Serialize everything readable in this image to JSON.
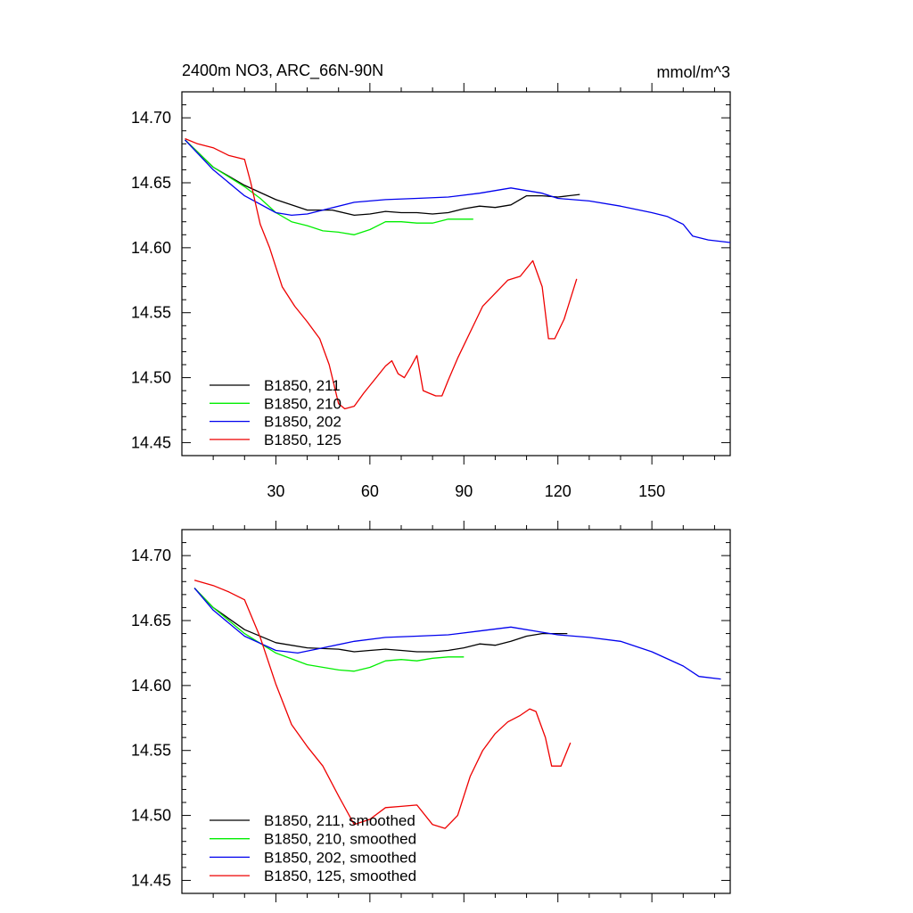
{
  "header": {
    "title": "2400m NO3, ARC_66N-90N",
    "units": "mmol/m^3"
  },
  "chart_data": [
    {
      "type": "line",
      "title": "2400m NO3, ARC_66N-90N",
      "units": "mmol/m^3",
      "xlim": [
        0,
        175
      ],
      "ylim": [
        14.44,
        14.72
      ],
      "xticks": [
        30,
        60,
        90,
        120,
        150
      ],
      "xtick_labels": [
        "30",
        "60",
        "90",
        "120",
        "150"
      ],
      "yticks": [
        14.45,
        14.5,
        14.55,
        14.6,
        14.65,
        14.7
      ],
      "ytick_labels": [
        "14.45",
        "14.50",
        "14.55",
        "14.60",
        "14.65",
        "14.70"
      ],
      "grid": false,
      "legend_position": "bottom-left",
      "series": [
        {
          "name": "B1850, 211",
          "color": "#000000",
          "x": [
            1,
            10,
            20,
            30,
            40,
            48,
            55,
            60,
            65,
            70,
            75,
            80,
            85,
            90,
            95,
            100,
            105,
            110,
            115,
            120,
            127
          ],
          "y": [
            14.683,
            14.662,
            14.648,
            14.637,
            14.629,
            14.629,
            14.625,
            14.626,
            14.628,
            14.627,
            14.627,
            14.626,
            14.627,
            14.63,
            14.632,
            14.631,
            14.633,
            14.64,
            14.64,
            14.639,
            14.641
          ]
        },
        {
          "name": "B1850, 210",
          "color": "#00ee00",
          "x": [
            1,
            10,
            20,
            25,
            30,
            35,
            40,
            45,
            50,
            55,
            60,
            65,
            70,
            75,
            80,
            85,
            90,
            93
          ],
          "y": [
            14.683,
            14.662,
            14.647,
            14.638,
            14.627,
            14.62,
            14.617,
            14.613,
            14.612,
            14.61,
            14.614,
            14.62,
            14.62,
            14.619,
            14.619,
            14.622,
            14.622,
            14.622
          ]
        },
        {
          "name": "B1850, 202",
          "color": "#0000ee",
          "x": [
            1,
            10,
            20,
            30,
            35,
            40,
            45,
            55,
            65,
            75,
            85,
            95,
            105,
            115,
            120,
            130,
            140,
            150,
            155,
            160,
            163,
            168,
            175
          ],
          "y": [
            14.683,
            14.66,
            14.64,
            14.627,
            14.625,
            14.626,
            14.629,
            14.635,
            14.637,
            14.638,
            14.639,
            14.642,
            14.646,
            14.642,
            14.638,
            14.636,
            14.632,
            14.627,
            14.624,
            14.618,
            14.609,
            14.606,
            14.604
          ]
        },
        {
          "name": "B1850, 125",
          "color": "#ee0000",
          "x": [
            1,
            5,
            10,
            15,
            20,
            22,
            25,
            28,
            32,
            36,
            40,
            44,
            47,
            50,
            52,
            55,
            58,
            62,
            65,
            67,
            69,
            71,
            73,
            75,
            77,
            79,
            81,
            83,
            85,
            88,
            92,
            96,
            100,
            104,
            108,
            112,
            115,
            117,
            119,
            122,
            126
          ],
          "y": [
            14.684,
            14.68,
            14.677,
            14.671,
            14.668,
            14.65,
            14.618,
            14.6,
            14.57,
            14.555,
            14.543,
            14.53,
            14.51,
            14.48,
            14.476,
            14.478,
            14.488,
            14.5,
            14.509,
            14.513,
            14.503,
            14.5,
            14.508,
            14.517,
            14.49,
            14.488,
            14.486,
            14.486,
            14.498,
            14.515,
            14.535,
            14.555,
            14.565,
            14.575,
            14.578,
            14.59,
            14.57,
            14.53,
            14.53,
            14.545,
            14.576
          ]
        }
      ]
    },
    {
      "type": "line",
      "title": "",
      "xlim": [
        0,
        175
      ],
      "ylim": [
        14.44,
        14.72
      ],
      "xticks": [
        30,
        60,
        90,
        120,
        150
      ],
      "yticks": [
        14.45,
        14.5,
        14.55,
        14.6,
        14.65,
        14.7
      ],
      "ytick_labels": [
        "14.45",
        "14.50",
        "14.55",
        "14.60",
        "14.65",
        "14.70"
      ],
      "grid": false,
      "legend_position": "bottom-left",
      "series": [
        {
          "name": "B1850, 211, smoothed",
          "color": "#000000",
          "x": [
            4,
            10,
            20,
            30,
            40,
            50,
            55,
            60,
            65,
            70,
            75,
            80,
            85,
            90,
            95,
            100,
            105,
            110,
            115,
            123
          ],
          "y": [
            14.675,
            14.66,
            14.643,
            14.633,
            14.629,
            14.628,
            14.626,
            14.627,
            14.628,
            14.627,
            14.626,
            14.626,
            14.627,
            14.629,
            14.632,
            14.631,
            14.634,
            14.638,
            14.64,
            14.64
          ]
        },
        {
          "name": "B1850, 210, smoothed",
          "color": "#00ee00",
          "x": [
            4,
            10,
            20,
            30,
            40,
            50,
            55,
            60,
            65,
            70,
            75,
            80,
            85,
            90
          ],
          "y": [
            14.675,
            14.66,
            14.64,
            14.625,
            14.616,
            14.612,
            14.611,
            14.614,
            14.619,
            14.62,
            14.619,
            14.621,
            14.622,
            14.622
          ]
        },
        {
          "name": "B1850, 202, smoothed",
          "color": "#0000ee",
          "x": [
            4,
            10,
            20,
            30,
            37,
            45,
            55,
            65,
            75,
            85,
            95,
            105,
            115,
            120,
            130,
            140,
            150,
            160,
            165,
            172
          ],
          "y": [
            14.675,
            14.658,
            14.638,
            14.627,
            14.625,
            14.629,
            14.634,
            14.637,
            14.638,
            14.639,
            14.642,
            14.645,
            14.641,
            14.639,
            14.637,
            14.634,
            14.626,
            14.615,
            14.607,
            14.605
          ]
        },
        {
          "name": "B1850, 125, smoothed",
          "color": "#ee0000",
          "x": [
            4,
            10,
            15,
            20,
            25,
            30,
            35,
            40,
            45,
            50,
            55,
            60,
            65,
            70,
            75,
            80,
            84,
            88,
            92,
            96,
            100,
            104,
            108,
            111,
            113,
            116,
            118,
            121,
            124
          ],
          "y": [
            14.681,
            14.677,
            14.672,
            14.666,
            14.637,
            14.601,
            14.57,
            14.553,
            14.538,
            14.515,
            14.493,
            14.497,
            14.506,
            14.507,
            14.508,
            14.493,
            14.49,
            14.5,
            14.53,
            14.55,
            14.563,
            14.572,
            14.577,
            14.582,
            14.58,
            14.56,
            14.538,
            14.538,
            14.556
          ]
        }
      ]
    }
  ]
}
